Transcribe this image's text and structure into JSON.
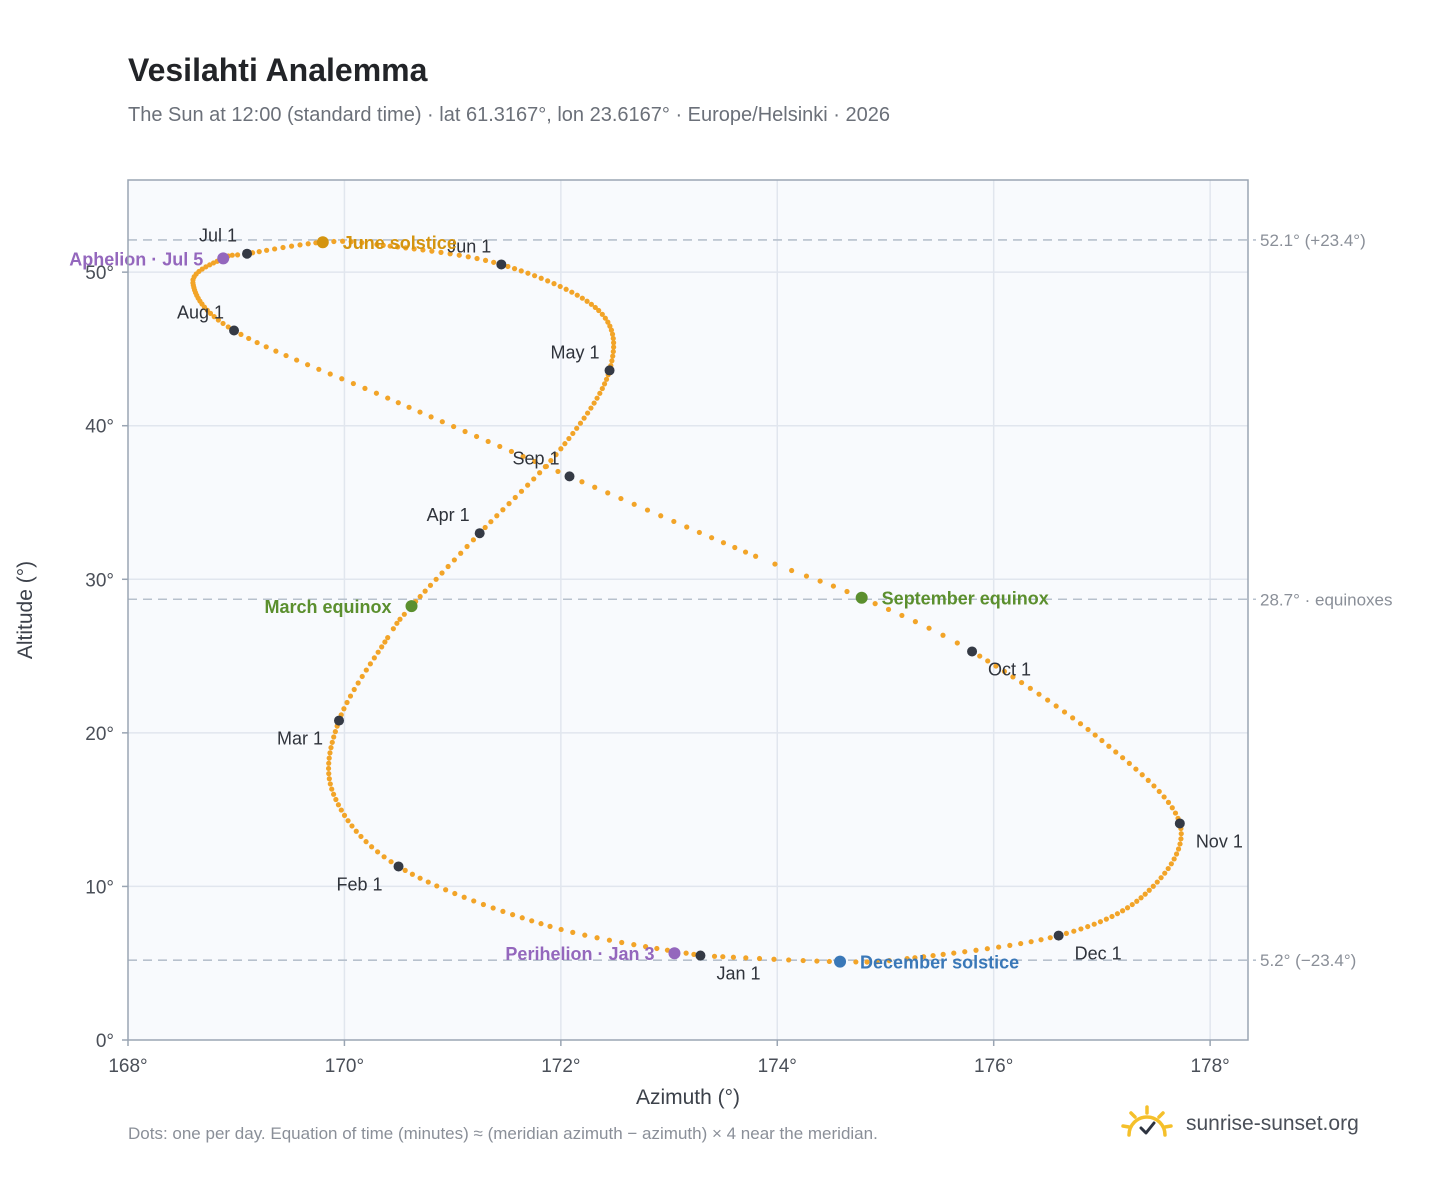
{
  "title": "Vesilahti Analemma",
  "subtitle": "The Sun at 12:00 (standard time) · lat 61.3167°, lon 23.6167° · Europe/Helsinki · 2026",
  "footnote": "Dots: one per day. Equation of time (minutes) ≈ (meridian azimuth − azimuth) × 4 near the meridian.",
  "brand": {
    "name": "sunrise-sunset.org",
    "icon": "sun-logo-icon"
  },
  "colors": {
    "path": "#f2a428",
    "month": "#353a45",
    "solstice_june": "#d4940f",
    "equinox": "#5b8f2e",
    "solstice_december": "#3a78b8",
    "apsis": "#9467bd",
    "plot_bg": "#f8fafd",
    "grid": "#e1e6ee",
    "reference_line": "#b7c1cd"
  },
  "chart_data": {
    "type": "scatter",
    "xlabel": "Azimuth (°)",
    "ylabel": "Altitude (°)",
    "xlim": [
      168,
      178.35
    ],
    "ylim": [
      0,
      56
    ],
    "x_ticks": [
      {
        "value": 168,
        "label": "168°"
      },
      {
        "value": 170,
        "label": "170°"
      },
      {
        "value": 172,
        "label": "172°"
      },
      {
        "value": 174,
        "label": "174°"
      },
      {
        "value": 176,
        "label": "176°"
      },
      {
        "value": 178,
        "label": "178°"
      }
    ],
    "y_ticks": [
      {
        "value": 0,
        "label": "0°"
      },
      {
        "value": 10,
        "label": "10°"
      },
      {
        "value": 20,
        "label": "20°"
      },
      {
        "value": 30,
        "label": "30°"
      },
      {
        "value": 40,
        "label": "40°"
      },
      {
        "value": 50,
        "label": "50°"
      }
    ],
    "grid": true,
    "reference_lines": [
      {
        "y": 52.1,
        "label": "52.1° (+23.4°)"
      },
      {
        "y": 28.7,
        "label": "28.7° · equinoxes"
      },
      {
        "y": 5.2,
        "label": "5.2° (−23.4°)"
      }
    ],
    "daily_path": {
      "description": "Dots: one per day",
      "anchors": [
        {
          "doy": 1,
          "x": 173.29,
          "y": 5.5
        },
        {
          "doy": 15,
          "x": 171.9,
          "y": 7.4
        },
        {
          "doy": 32,
          "x": 170.5,
          "y": 11.3
        },
        {
          "doy": 46,
          "x": 169.9,
          "y": 16.0
        },
        {
          "doy": 60,
          "x": 169.95,
          "y": 20.8
        },
        {
          "doy": 74,
          "x": 170.4,
          "y": 26.2
        },
        {
          "doy": 79,
          "x": 170.62,
          "y": 28.25
        },
        {
          "doy": 91,
          "x": 171.25,
          "y": 33.0
        },
        {
          "doy": 105,
          "x": 172.0,
          "y": 38.5
        },
        {
          "doy": 121,
          "x": 172.45,
          "y": 43.6
        },
        {
          "doy": 135,
          "x": 172.35,
          "y": 47.5
        },
        {
          "doy": 152,
          "x": 171.45,
          "y": 50.5
        },
        {
          "doy": 167,
          "x": 170.3,
          "y": 51.8
        },
        {
          "doy": 172,
          "x": 169.8,
          "y": 51.95
        },
        {
          "doy": 182,
          "x": 169.1,
          "y": 51.2
        },
        {
          "doy": 186,
          "x": 168.88,
          "y": 50.9
        },
        {
          "doy": 197,
          "x": 168.6,
          "y": 49.3
        },
        {
          "doy": 213,
          "x": 168.98,
          "y": 46.2
        },
        {
          "doy": 228,
          "x": 170.4,
          "y": 41.8
        },
        {
          "doy": 244,
          "x": 172.08,
          "y": 36.7
        },
        {
          "doy": 259,
          "x": 173.8,
          "y": 31.5
        },
        {
          "doy": 266,
          "x": 174.78,
          "y": 28.8
        },
        {
          "doy": 274,
          "x": 175.8,
          "y": 25.3
        },
        {
          "doy": 290,
          "x": 177.0,
          "y": 19.5
        },
        {
          "doy": 305,
          "x": 177.72,
          "y": 14.1
        },
        {
          "doy": 320,
          "x": 177.4,
          "y": 9.5
        },
        {
          "doy": 335,
          "x": 176.6,
          "y": 6.8
        },
        {
          "doy": 350,
          "x": 175.2,
          "y": 5.3
        },
        {
          "doy": 355,
          "x": 174.58,
          "y": 5.1
        },
        {
          "doy": 365,
          "x": 173.42,
          "y": 5.45
        }
      ]
    },
    "months": [
      {
        "label": "Jan 1",
        "x": 173.29,
        "y": 5.5,
        "pos": "below-right"
      },
      {
        "label": "Feb 1",
        "x": 170.5,
        "y": 11.3,
        "pos": "below-left"
      },
      {
        "label": "Mar 1",
        "x": 169.95,
        "y": 20.8,
        "pos": "below-left"
      },
      {
        "label": "Apr 1",
        "x": 171.25,
        "y": 33.0,
        "pos": "above-left"
      },
      {
        "label": "May 1",
        "x": 172.45,
        "y": 43.6,
        "pos": "above-left"
      },
      {
        "label": "Jun 1",
        "x": 171.45,
        "y": 50.5,
        "pos": "above-left"
      },
      {
        "label": "Jul 1",
        "x": 169.1,
        "y": 51.2,
        "pos": "above-left"
      },
      {
        "label": "Aug 1",
        "x": 168.98,
        "y": 46.2,
        "pos": "above-left"
      },
      {
        "label": "Sep 1",
        "x": 172.08,
        "y": 36.7,
        "pos": "above-left"
      },
      {
        "label": "Oct 1",
        "x": 175.8,
        "y": 25.3,
        "pos": "below-right"
      },
      {
        "label": "Nov 1",
        "x": 177.72,
        "y": 14.1,
        "pos": "below-right"
      },
      {
        "label": "Dec 1",
        "x": 176.6,
        "y": 6.8,
        "pos": "below-right"
      }
    ],
    "events": [
      {
        "label": "June solstice",
        "x": 169.8,
        "y": 51.95,
        "color": "#d4940f",
        "side": "right"
      },
      {
        "label": "March equinox",
        "x": 170.62,
        "y": 28.25,
        "color": "#5b8f2e",
        "side": "left"
      },
      {
        "label": "September equinox",
        "x": 174.78,
        "y": 28.8,
        "color": "#5b8f2e",
        "side": "right"
      },
      {
        "label": "December solstice",
        "x": 174.58,
        "y": 5.1,
        "color": "#3a78b8",
        "side": "right"
      },
      {
        "label": "Aphelion · Jul 5",
        "x": 168.88,
        "y": 50.9,
        "color": "#9467bd",
        "side": "left"
      },
      {
        "label": "Perihelion · Jan 3",
        "x": 173.05,
        "y": 5.65,
        "color": "#9467bd",
        "side": "left"
      }
    ]
  }
}
